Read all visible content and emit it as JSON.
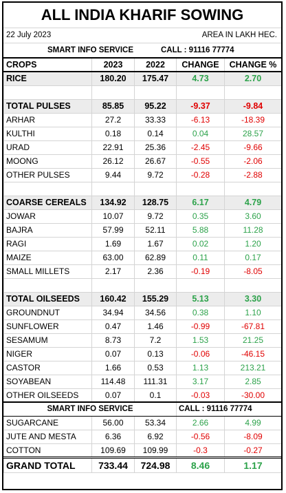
{
  "header": {
    "title": "ALL INDIA KHARIF SOWING",
    "date": "22 July 2023",
    "unit": "AREA IN LAKH HEC.",
    "info": {
      "name": "SMART INFO SERVICE",
      "call": "CALL : 91116 77774"
    }
  },
  "table": {
    "columns": [
      "CROPS",
      "2023",
      "2022",
      "CHANGE",
      "CHANGE %"
    ],
    "rice": [
      "RICE",
      "180.20",
      "175.47",
      "4.73",
      "2.70"
    ],
    "groups": [
      {
        "total": [
          "TOTAL PULSES",
          "85.85",
          "95.22",
          "-9.37",
          "-9.84"
        ],
        "items": [
          [
            "ARHAR",
            "27.2",
            "33.33",
            "-6.13",
            "-18.39"
          ],
          [
            "KULTHI",
            "0.18",
            "0.14",
            "0.04",
            "28.57"
          ],
          [
            "URAD",
            "22.91",
            "25.36",
            "-2.45",
            "-9.66"
          ],
          [
            "MOONG",
            "26.12",
            "26.67",
            "-0.55",
            "-2.06"
          ],
          [
            "OTHER PULSES",
            "9.44",
            "9.72",
            "-0.28",
            "-2.88"
          ]
        ]
      },
      {
        "total": [
          "COARSE CEREALS",
          "134.92",
          "128.75",
          "6.17",
          "4.79"
        ],
        "items": [
          [
            "JOWAR",
            "10.07",
            "9.72",
            "0.35",
            "3.60"
          ],
          [
            "BAJRA",
            "57.99",
            "52.11",
            "5.88",
            "11.28"
          ],
          [
            "RAGI",
            "1.69",
            "1.67",
            "0.02",
            "1.20"
          ],
          [
            "MAIZE",
            "63.00",
            "62.89",
            "0.11",
            "0.17"
          ],
          [
            "SMALL MILLETS",
            "2.17",
            "2.36",
            "-0.19",
            "-8.05"
          ]
        ]
      },
      {
        "total": [
          "TOTAL OILSEEDS",
          "160.42",
          "155.29",
          "5.13",
          "3.30"
        ],
        "items": [
          [
            "GROUNDNUT",
            "34.94",
            "34.56",
            "0.38",
            "1.10"
          ],
          [
            "SUNFLOWER",
            "0.47",
            "1.46",
            "-0.99",
            "-67.81"
          ],
          [
            "SESAMUM",
            "8.73",
            "7.2",
            "1.53",
            "21.25"
          ],
          [
            "NIGER",
            "0.07",
            "0.13",
            "-0.06",
            "-46.15"
          ],
          [
            "CASTOR",
            "1.66",
            "0.53",
            "1.13",
            "213.21"
          ],
          [
            "SOYABEAN",
            "114.48",
            "111.31",
            "3.17",
            "2.85"
          ],
          [
            "OTHER OILSEEDS",
            "0.07",
            "0.1",
            "-0.03",
            "-30.00"
          ]
        ]
      }
    ],
    "others": [
      [
        "SUGARCANE",
        "56.00",
        "53.34",
        "2.66",
        "4.99"
      ],
      [
        "JUTE AND MESTA",
        "6.36",
        "6.92",
        "-0.56",
        "-8.09"
      ],
      [
        "COTTON",
        "109.69",
        "109.99",
        "-0.3",
        "-0.27"
      ]
    ],
    "grand_total": [
      "GRAND TOTAL",
      "733.44",
      "724.98",
      "8.46",
      "1.17"
    ]
  }
}
